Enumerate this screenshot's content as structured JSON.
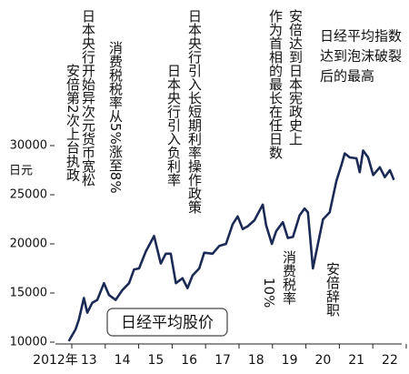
{
  "chart_data": {
    "type": "line",
    "title": "日经平均股价",
    "y_label": "日元",
    "x": [
      2012.9,
      2013.0,
      2013.1,
      2013.2,
      2013.35,
      2013.45,
      2013.6,
      2013.75,
      2013.95,
      2014.1,
      2014.3,
      2014.5,
      2014.7,
      2014.85,
      2015.0,
      2015.2,
      2015.45,
      2015.65,
      2015.8,
      2015.95,
      2016.1,
      2016.3,
      2016.45,
      2016.6,
      2016.8,
      2016.95,
      2017.2,
      2017.4,
      2017.6,
      2017.8,
      2017.95,
      2018.1,
      2018.25,
      2018.45,
      2018.7,
      2018.8,
      2018.97,
      2019.1,
      2019.3,
      2019.45,
      2019.6,
      2019.8,
      2019.95,
      2020.05,
      2020.2,
      2020.35,
      2020.5,
      2020.7,
      2020.9,
      2021.05,
      2021.15,
      2021.3,
      2021.5,
      2021.6,
      2021.7,
      2021.85,
      2022.0,
      2022.2,
      2022.35,
      2022.5,
      2022.62
    ],
    "series": [
      {
        "color": "#1b2a55",
        "values": [
          10100,
          10700,
          11300,
          12300,
          14500,
          13000,
          14000,
          14300,
          16000,
          14800,
          14300,
          15300,
          16000,
          17400,
          17500,
          19200,
          20800,
          18000,
          19000,
          19000,
          16000,
          16500,
          15500,
          16800,
          17500,
          19100,
          19000,
          19800,
          20000,
          22000,
          22800,
          21500,
          21800,
          22400,
          24000,
          21900,
          20000,
          21300,
          22200,
          20600,
          20700,
          22900,
          23600,
          23200,
          17500,
          20000,
          22500,
          23200,
          26400,
          28000,
          29200,
          28800,
          28700,
          27300,
          29500,
          28800,
          27000,
          27800,
          26800,
          27500,
          26500
        ]
      }
    ],
    "xlim": [
      2012.5,
      2022.8
    ],
    "xticks": [
      {
        "value": 2012.5,
        "label": "2012年"
      },
      {
        "value": 2013.5,
        "label": "13"
      },
      {
        "value": 2014.5,
        "label": "14"
      },
      {
        "value": 2015.5,
        "label": "15"
      },
      {
        "value": 2016.5,
        "label": "16"
      },
      {
        "value": 2017.5,
        "label": "17"
      },
      {
        "value": 2018.5,
        "label": "18"
      },
      {
        "value": 2019.5,
        "label": "19"
      },
      {
        "value": 2020.5,
        "label": "20"
      },
      {
        "value": 2021.5,
        "label": "21"
      },
      {
        "value": 2022.5,
        "label": "22"
      }
    ],
    "ylim": [
      10000,
      30000
    ],
    "yticks": [
      10000,
      15000,
      20000,
      25000,
      30000
    ],
    "annotations": [
      {
        "lines": [
          "日本央行开始异次元货币宽松"
        ]
      },
      {
        "lines": [
          "安倍第2次上台执政"
        ]
      },
      {
        "lines": [
          "消费税税率从5%涨至8%"
        ]
      },
      {
        "lines": [
          "日本央行引入负利率"
        ]
      },
      {
        "lines": [
          "日本央行引入长短期利率操作政策"
        ]
      },
      {
        "lines": [
          "安倍达到日本宪政史上",
          "作为首相的最长在任日数"
        ]
      },
      {
        "lines": [
          "消费税率",
          "10%"
        ]
      },
      {
        "lines": [
          "安倍辞职"
        ]
      },
      {
        "lines": [
          "日经平均指数",
          "达到泡沫破裂",
          "后的最高"
        ]
      }
    ]
  }
}
